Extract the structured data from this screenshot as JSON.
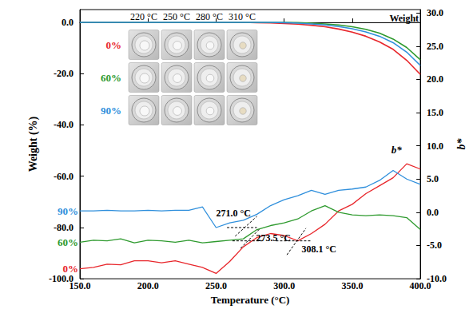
{
  "chart_data": {
    "type": "line",
    "x_label": "Temperature (°C)",
    "y_label": "Weight (%)",
    "y2_label": "b*",
    "x": [
      150,
      160,
      170,
      180,
      190,
      200,
      210,
      220,
      230,
      240,
      250,
      260,
      270,
      280,
      290,
      300,
      310,
      320,
      330,
      340,
      350,
      360,
      370,
      380,
      390,
      400
    ],
    "xlim": [
      150,
      400
    ],
    "xticks": [
      {
        "value": 150,
        "label": "150.0"
      },
      {
        "value": 200,
        "label": "200.0"
      },
      {
        "value": 250,
        "label": "250.0"
      },
      {
        "value": 300,
        "label": "300.0"
      },
      {
        "value": 350,
        "label": "350.0"
      },
      {
        "value": 400,
        "label": "400.0"
      }
    ],
    "ylim": [
      -100,
      5
    ],
    "yticks": [
      {
        "value": -100,
        "label": "-100.0"
      },
      {
        "value": -80,
        "label": "-80.0"
      },
      {
        "value": -60,
        "label": "-60.0"
      },
      {
        "value": -40,
        "label": "-40.0"
      },
      {
        "value": -20,
        "label": "-20.0"
      },
      {
        "value": 0,
        "label": "0.0"
      }
    ],
    "y2lim": [
      -10,
      30.5
    ],
    "y2ticks": [
      {
        "value": -10,
        "label": "-10.0"
      },
      {
        "value": -5,
        "label": "-5.0"
      },
      {
        "value": 0,
        "label": "0.0"
      },
      {
        "value": 5,
        "label": "5.0"
      },
      {
        "value": 10,
        "label": "10.0"
      },
      {
        "value": 15,
        "label": "15.0"
      },
      {
        "value": 20,
        "label": "20.0"
      },
      {
        "value": 25,
        "label": "25.0"
      },
      {
        "value": 30,
        "label": "30.0"
      }
    ],
    "grid": false,
    "series": [
      {
        "name": "0%",
        "color": "#e8262b",
        "axis": "y",
        "values": [
          0,
          0,
          0,
          0,
          0,
          0,
          0,
          0,
          0,
          0,
          0,
          0,
          0,
          -0.1,
          -0.2,
          -0.4,
          -0.7,
          -1.1,
          -1.7,
          -2.6,
          -3.8,
          -5.4,
          -7.6,
          -10.5,
          -14.8,
          -20.3
        ]
      },
      {
        "name": "60%",
        "color": "#2e9a2e",
        "axis": "y",
        "values": [
          0,
          0,
          0,
          0,
          0,
          0,
          0,
          0,
          0,
          0,
          0,
          0,
          0,
          0,
          0,
          0,
          -0.1,
          -0.3,
          -0.6,
          -1.0,
          -1.7,
          -2.7,
          -4.2,
          -6.5,
          -9.8,
          -14.6
        ]
      },
      {
        "name": "90%",
        "color": "#2f8fdc",
        "axis": "y",
        "values": [
          0,
          0,
          0,
          0,
          0,
          0,
          0,
          0,
          0,
          0,
          0,
          0,
          0,
          0,
          0,
          -0.1,
          -0.3,
          -0.6,
          -1.0,
          -1.6,
          -2.5,
          -3.7,
          -5.4,
          -7.9,
          -11.6,
          -16.8
        ]
      },
      {
        "name": "0%",
        "color": "#e8262b",
        "axis": "y2",
        "values": [
          -8.5,
          -8.3,
          -7.8,
          -7.9,
          -7.3,
          -7.3,
          -7.6,
          -7.3,
          -7.8,
          -8.3,
          -9.2,
          -7.4,
          -5.2,
          -3.8,
          -3.2,
          -3.5,
          -4.3,
          -3.2,
          -1.8,
          0.2,
          1.2,
          2.8,
          4.0,
          5.2,
          7.3,
          6.5
        ]
      },
      {
        "name": "60%",
        "color": "#2e9a2e",
        "axis": "y2",
        "values": [
          -4.5,
          -4.2,
          -4.3,
          -4.0,
          -4.6,
          -4.2,
          -4.3,
          -4.5,
          -4.2,
          -4.6,
          -4.4,
          -4.2,
          -4.0,
          -2.6,
          -2.0,
          -1.6,
          -1.0,
          0.2,
          1.0,
          0.0,
          -0.4,
          -0.5,
          -0.4,
          -0.5,
          -0.8,
          -2.6
        ]
      },
      {
        "name": "90%",
        "color": "#2f8fdc",
        "axis": "y2",
        "values": [
          0.2,
          0.2,
          0.3,
          0.2,
          0.2,
          0.3,
          0.2,
          0.3,
          0.3,
          0.8,
          -2.3,
          -1.6,
          -1.2,
          -0.3,
          1.0,
          1.9,
          2.5,
          3.3,
          2.7,
          3.3,
          3.5,
          3.8,
          4.8,
          6.3,
          5.0,
          4.2
        ]
      }
    ],
    "annotations": [
      {
        "text": "271.0 °C",
        "x": 271.0,
        "y": -2.3,
        "tangents": [
          [
            [
              258,
              -2.3
            ],
            [
              280,
              -2.3
            ]
          ],
          [
            [
              264,
              -3.6
            ],
            [
              280,
              -0.6
            ]
          ]
        ]
      },
      {
        "text": "273.5 °C",
        "x": 273.5,
        "y": -4.3,
        "tangents": [
          [
            [
              262,
              -4.3
            ],
            [
              284,
              -4.3
            ]
          ],
          [
            [
              268,
              -5.4
            ],
            [
              282,
              -2.5
            ]
          ]
        ]
      },
      {
        "text": "308.1 °C",
        "x": 308.1,
        "y": -4.3,
        "tangents": [
          [
            [
              294,
              -4.3
            ],
            [
              320,
              -4.3
            ]
          ],
          [
            [
              302,
              -6.4
            ],
            [
              316,
              -2.4
            ]
          ]
        ]
      }
    ],
    "curve_labels": [
      {
        "text": "Weight",
        "x": 400,
        "y": -1,
        "axis": "y"
      },
      {
        "text": "b*",
        "x": 386,
        "y": 8.2,
        "axis": "y2"
      }
    ],
    "inset": {
      "columns": [
        "220 °C",
        "250 °C",
        "280 °C",
        "310 °C"
      ],
      "rows": [
        "0%",
        "60%",
        "90%"
      ]
    }
  }
}
